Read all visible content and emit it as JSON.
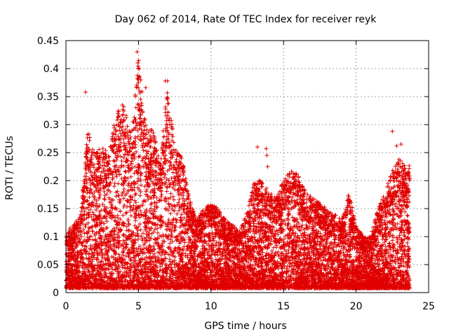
{
  "chart_data": {
    "type": "scatter",
    "title": "Day 062 of 2014, Rate Of TEC Index for receiver reyk",
    "xlabel": "GPS time / hours",
    "ylabel": "ROTI / TECUs",
    "xlim": [
      0,
      25
    ],
    "ylim": [
      0,
      0.45
    ],
    "x_ticks": [
      0,
      5,
      10,
      15,
      20,
      25
    ],
    "x_tick_labels": [
      "0",
      "5",
      "10",
      "15",
      "20",
      "25"
    ],
    "y_ticks": [
      0,
      0.05,
      0.1,
      0.15,
      0.2,
      0.25,
      0.3,
      0.35,
      0.4,
      0.45
    ],
    "y_tick_labels": [
      "0",
      "0.05",
      "0.1",
      "0.15",
      "0.2",
      "0.25",
      "0.3",
      "0.35",
      "0.4",
      "0.45"
    ],
    "grid": true,
    "marker": "+",
    "color": "#e00000",
    "series": [
      {
        "name": "ROTI",
        "envelope": {
          "x": [
            0,
            0.5,
            1.0,
            1.5,
            2.0,
            2.5,
            3.0,
            3.5,
            4.0,
            4.5,
            5.0,
            5.5,
            6.0,
            6.5,
            7.0,
            7.5,
            8.0,
            8.5,
            9.0,
            9.5,
            10.0,
            10.5,
            11.0,
            11.5,
            12.0,
            12.5,
            13.0,
            13.5,
            14.0,
            14.5,
            15.0,
            15.5,
            16.0,
            16.5,
            17.0,
            17.5,
            18.0,
            18.5,
            19.0,
            19.5,
            20.0,
            20.5,
            21.0,
            21.5,
            22.0,
            22.5,
            23.0,
            23.5,
            23.7
          ],
          "ymax": [
            0.11,
            0.12,
            0.14,
            0.29,
            0.25,
            0.26,
            0.25,
            0.33,
            0.34,
            0.28,
            0.42,
            0.3,
            0.29,
            0.24,
            0.37,
            0.26,
            0.24,
            0.17,
            0.13,
            0.15,
            0.16,
            0.15,
            0.13,
            0.12,
            0.11,
            0.15,
            0.2,
            0.2,
            0.18,
            0.17,
            0.2,
            0.22,
            0.21,
            0.18,
            0.17,
            0.16,
            0.15,
            0.14,
            0.13,
            0.18,
            0.12,
            0.1,
            0.1,
            0.15,
            0.18,
            0.22,
            0.24,
            0.22,
            0.23
          ]
        },
        "outliers": [
          {
            "x": 1.35,
            "y": 0.358
          },
          {
            "x": 4.9,
            "y": 0.43
          },
          {
            "x": 4.95,
            "y": 0.41
          },
          {
            "x": 5.0,
            "y": 0.375
          },
          {
            "x": 5.5,
            "y": 0.366
          },
          {
            "x": 6.85,
            "y": 0.378
          },
          {
            "x": 7.0,
            "y": 0.378
          },
          {
            "x": 13.2,
            "y": 0.26
          },
          {
            "x": 13.8,
            "y": 0.257
          },
          {
            "x": 13.85,
            "y": 0.245
          },
          {
            "x": 13.9,
            "y": 0.225
          },
          {
            "x": 22.5,
            "y": 0.288
          },
          {
            "x": 23.1,
            "y": 0.265
          },
          {
            "x": 22.8,
            "y": 0.262
          }
        ]
      }
    ]
  }
}
